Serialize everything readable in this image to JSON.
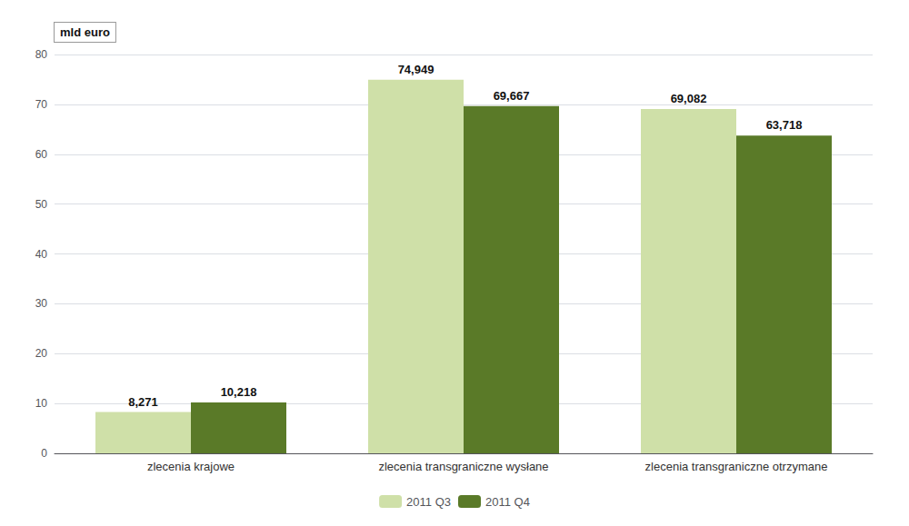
{
  "chart_data": {
    "type": "bar",
    "ylabel": "mld euro",
    "categories": [
      "zlecenia krajowe",
      "zlecenia transgraniczne wysłane",
      "zlecenia transgraniczne otrzymane"
    ],
    "series": [
      {
        "name": "2011 Q3",
        "color": "#cfe0a8",
        "values": [
          8.271,
          74.949,
          69.082
        ],
        "value_labels": [
          "8,271",
          "74,949",
          "69,082"
        ]
      },
      {
        "name": "2011 Q4",
        "color": "#5a7a28",
        "values": [
          10.218,
          69.667,
          63.718
        ],
        "value_labels": [
          "10,218",
          "69,667",
          "63,718"
        ]
      }
    ],
    "ylim": [
      0,
      80
    ],
    "yticks": [
      0,
      10,
      20,
      30,
      40,
      50,
      60,
      70,
      80
    ],
    "grid": true,
    "legend": "bottom",
    "data_labels": true
  }
}
